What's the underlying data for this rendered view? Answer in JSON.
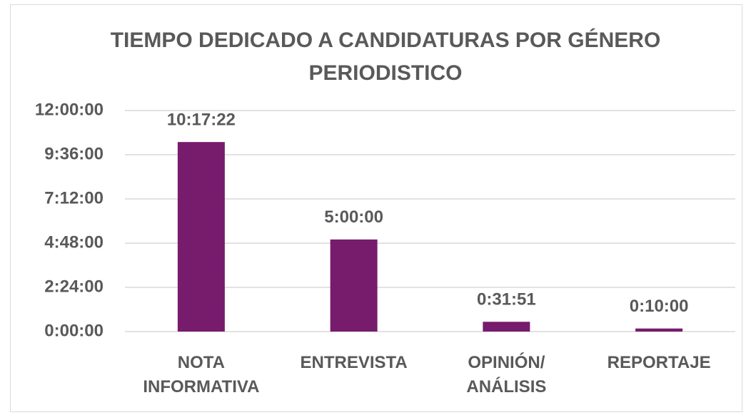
{
  "chart_data": {
    "type": "bar",
    "title": "TIEMPO DEDICADO A CANDIDATURAS POR GÉNERO PERIODISTICO",
    "categories": [
      "NOTA INFORMATIVA",
      "ENTREVISTA",
      "OPINIÓN/ ANÁLISIS",
      "REPORTAJE"
    ],
    "values": [
      10.289444,
      5,
      0.530833,
      0.166667
    ],
    "value_labels": [
      "10:17:22",
      "5:00:00",
      "0:31:51",
      "0:10:00"
    ],
    "color": "#771b6c",
    "ylim": [
      0,
      12
    ],
    "yticks": [
      {
        "value": 0,
        "label": "0:00:00"
      },
      {
        "value": 2.4,
        "label": "2:24:00"
      },
      {
        "value": 4.8,
        "label": "4:48:00"
      },
      {
        "value": 7.2,
        "label": "7:12:00"
      },
      {
        "value": 9.6,
        "label": "9:36:00"
      },
      {
        "value": 12,
        "label": "12:00:00"
      }
    ],
    "grid": true
  }
}
